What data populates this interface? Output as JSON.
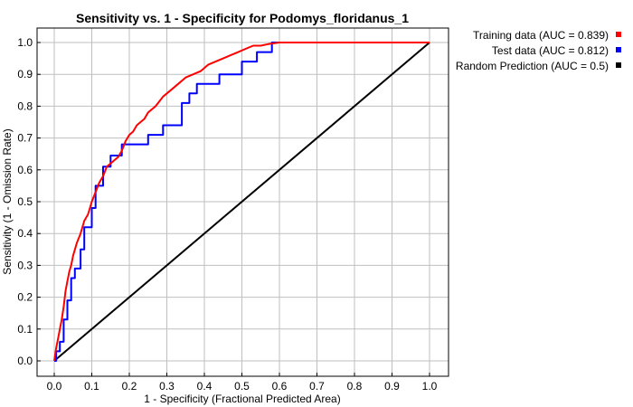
{
  "chart_data": {
    "type": "line",
    "title": "Sensitivity vs. 1 - Specificity for Podomys_floridanus_1",
    "xlabel": "1 - Specificity  (Fractional Predicted Area)",
    "ylabel": "Sensitivity  (1 - Omission Rate)",
    "xlim": [
      0,
      1
    ],
    "ylim": [
      0,
      1
    ],
    "xticks": [
      "0.0",
      "0.1",
      "0.2",
      "0.3",
      "0.4",
      "0.5",
      "0.6",
      "0.7",
      "0.8",
      "0.9",
      "1.0"
    ],
    "yticks": [
      "0.0",
      "0.1",
      "0.2",
      "0.3",
      "0.4",
      "0.5",
      "0.6",
      "0.7",
      "0.8",
      "0.9",
      "1.0"
    ],
    "grid": true,
    "legend_position": "top-right-outside",
    "series": [
      {
        "name": "Training data (AUC = 0.839)",
        "color": "#ff0000",
        "x": [
          0,
          0.005,
          0.01,
          0.015,
          0.02,
          0.025,
          0.03,
          0.035,
          0.04,
          0.045,
          0.05,
          0.06,
          0.07,
          0.08,
          0.09,
          0.1,
          0.11,
          0.12,
          0.13,
          0.14,
          0.15,
          0.16,
          0.17,
          0.18,
          0.19,
          0.2,
          0.21,
          0.22,
          0.23,
          0.24,
          0.25,
          0.27,
          0.29,
          0.31,
          0.33,
          0.35,
          0.37,
          0.39,
          0.41,
          0.43,
          0.45,
          0.47,
          0.49,
          0.51,
          0.53,
          0.55,
          0.57,
          0.6,
          1.0
        ],
        "y": [
          0,
          0.04,
          0.07,
          0.1,
          0.13,
          0.17,
          0.22,
          0.25,
          0.28,
          0.3,
          0.33,
          0.37,
          0.4,
          0.44,
          0.46,
          0.5,
          0.53,
          0.56,
          0.58,
          0.61,
          0.62,
          0.63,
          0.64,
          0.66,
          0.69,
          0.71,
          0.72,
          0.74,
          0.75,
          0.76,
          0.78,
          0.8,
          0.83,
          0.85,
          0.87,
          0.89,
          0.9,
          0.91,
          0.93,
          0.94,
          0.95,
          0.96,
          0.97,
          0.98,
          0.99,
          0.99,
          0.995,
          1.0,
          1.0
        ]
      },
      {
        "name": "Test data (AUC = 0.812)",
        "color": "#0000ff",
        "x": [
          0,
          0.005,
          0.005,
          0.015,
          0.015,
          0.025,
          0.025,
          0.035,
          0.035,
          0.045,
          0.045,
          0.055,
          0.055,
          0.07,
          0.07,
          0.08,
          0.08,
          0.1,
          0.1,
          0.11,
          0.11,
          0.13,
          0.13,
          0.15,
          0.15,
          0.18,
          0.18,
          0.25,
          0.25,
          0.29,
          0.29,
          0.34,
          0.34,
          0.36,
          0.36,
          0.38,
          0.38,
          0.44,
          0.44,
          0.5,
          0.5,
          0.54,
          0.54,
          0.58,
          0.58,
          1.0
        ],
        "y": [
          0,
          0,
          0.03,
          0.03,
          0.06,
          0.06,
          0.13,
          0.13,
          0.19,
          0.19,
          0.26,
          0.26,
          0.29,
          0.29,
          0.35,
          0.35,
          0.42,
          0.42,
          0.48,
          0.48,
          0.55,
          0.55,
          0.61,
          0.61,
          0.645,
          0.645,
          0.68,
          0.68,
          0.71,
          0.71,
          0.74,
          0.74,
          0.81,
          0.81,
          0.84,
          0.84,
          0.87,
          0.87,
          0.9,
          0.9,
          0.94,
          0.94,
          0.97,
          0.97,
          1.0,
          1.0
        ]
      },
      {
        "name": "Random Prediction (AUC = 0.5)",
        "color": "#000000",
        "x": [
          0,
          1
        ],
        "y": [
          0,
          1
        ]
      }
    ]
  }
}
